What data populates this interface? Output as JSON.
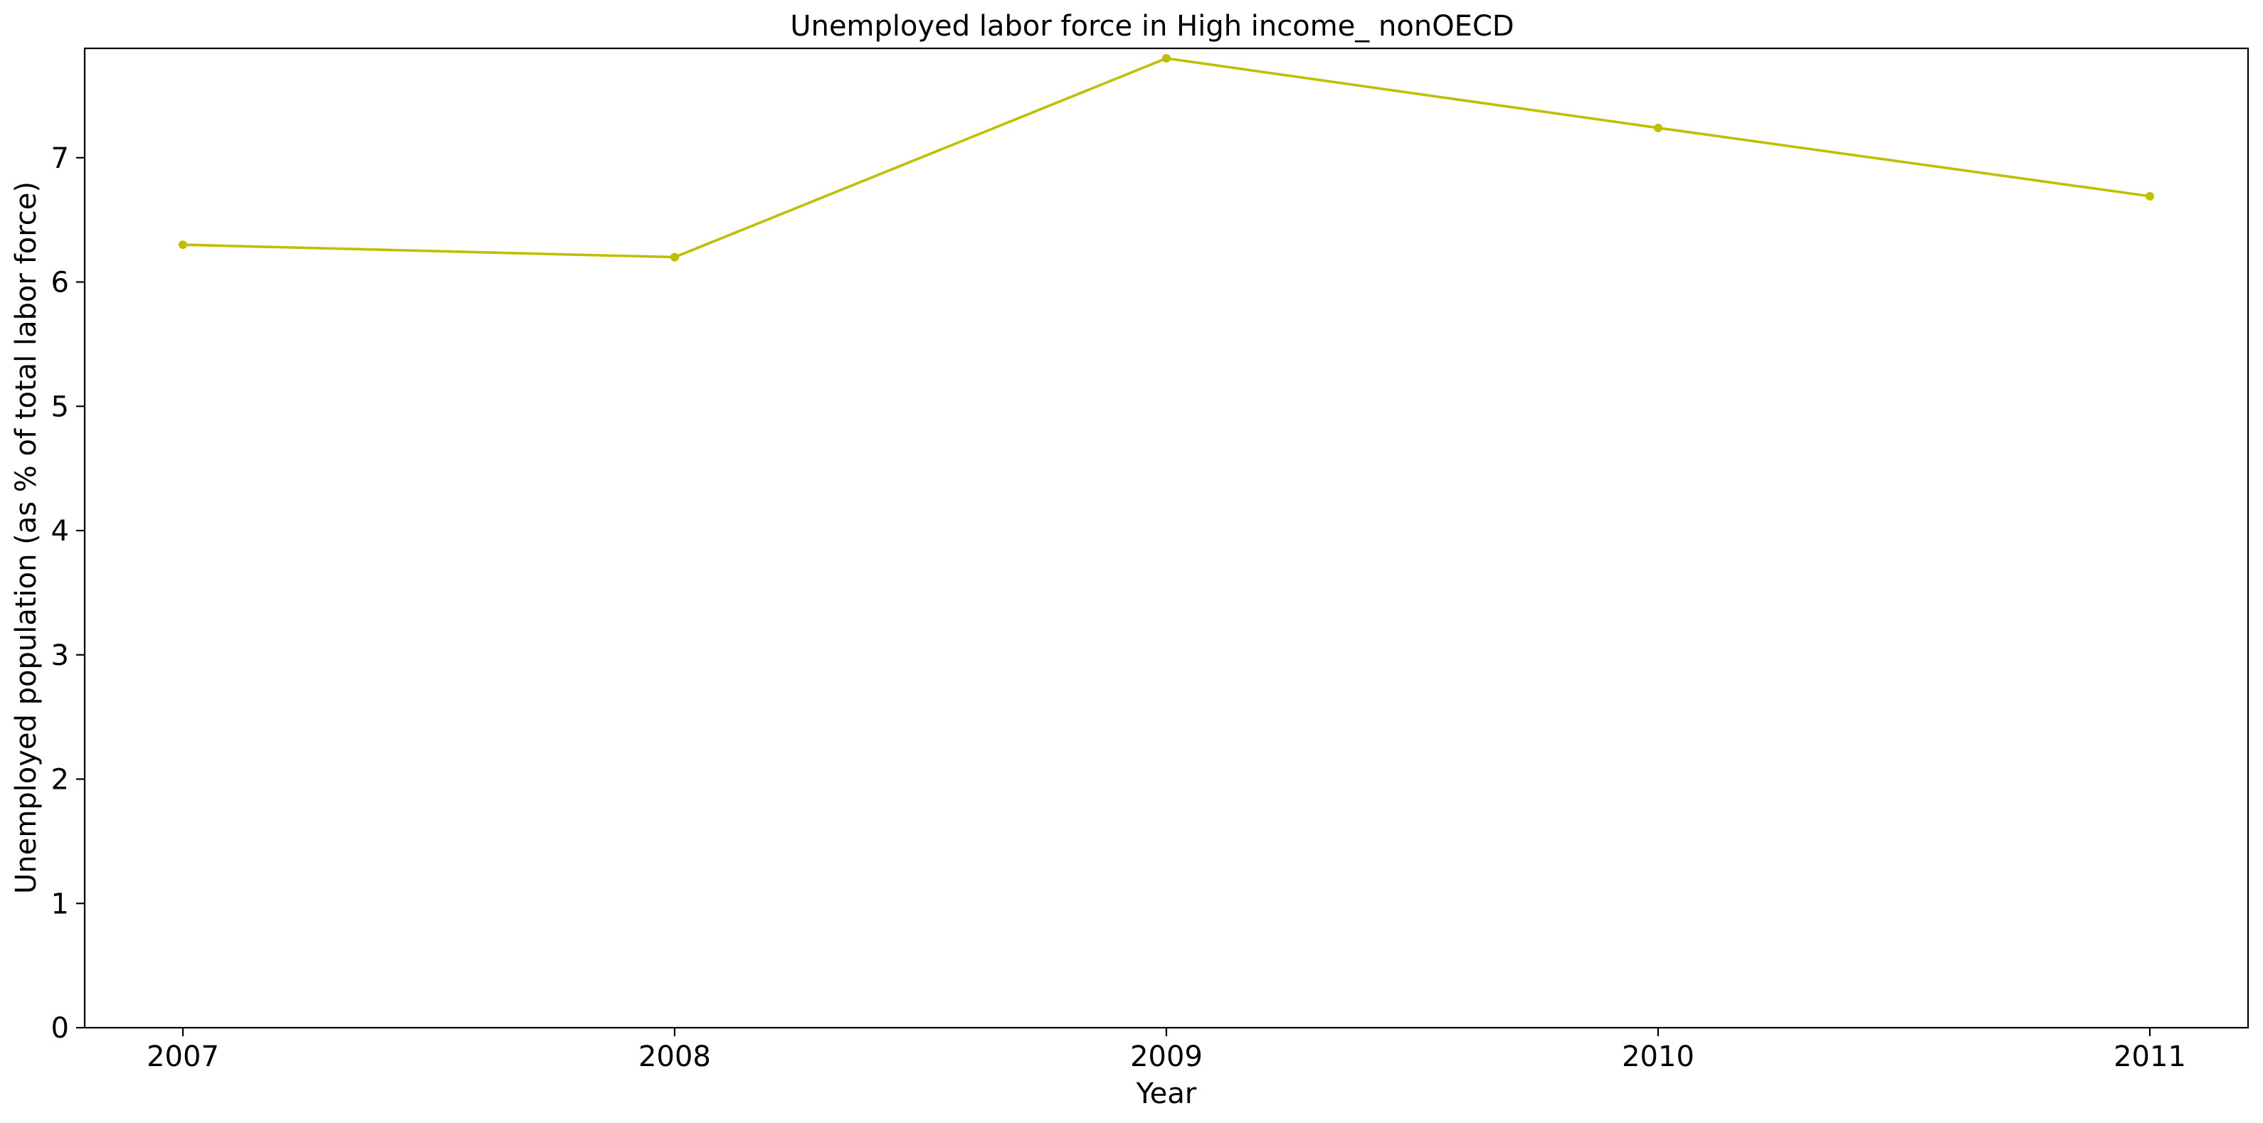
{
  "chart_data": {
    "type": "line",
    "title": "Unemployed labor force in High income_ nonOECD",
    "xlabel": "Year",
    "ylabel": "Unemployed population (as % of total labor force)",
    "x": [
      "2007",
      "2008",
      "2009",
      "2010",
      "2011"
    ],
    "series": [
      {
        "values": [
          6.3,
          6.2,
          7.8,
          7.24,
          6.69
        ],
        "color": "#bfbf00",
        "marker": "circle"
      }
    ],
    "ylim": [
      0,
      7.88
    ],
    "yticks": [
      0,
      1,
      2,
      3,
      4,
      5,
      6,
      7
    ],
    "grid": false,
    "legend": "none"
  }
}
